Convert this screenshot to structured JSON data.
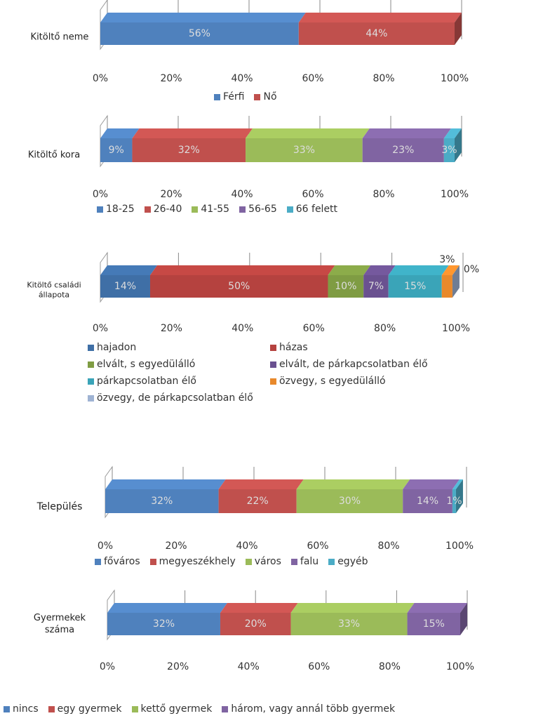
{
  "chart_data": [
    {
      "type": "bar",
      "categories": [
        "Kitöltő neme"
      ],
      "series": [
        {
          "name": "Férfi",
          "color": "#4f81bd",
          "values": [
            56
          ],
          "value_labels": [
            "56%"
          ]
        },
        {
          "name": "Nő",
          "color": "#c0504d",
          "values": [
            44
          ],
          "value_labels": [
            "44%"
          ]
        }
      ],
      "xlim": [
        0,
        100
      ],
      "xticks": [
        {
          "value": 0,
          "label": "0%"
        },
        {
          "value": 20,
          "label": "20%"
        },
        {
          "value": 40,
          "label": "40%"
        },
        {
          "value": 60,
          "label": "60%"
        },
        {
          "value": 80,
          "label": "80%"
        },
        {
          "value": 100,
          "label": "100%"
        }
      ],
      "grid": true
    },
    {
      "type": "bar",
      "categories": [
        "Kitöltő kora"
      ],
      "series": [
        {
          "name": "18-25",
          "color": "#4f81bd",
          "values": [
            9
          ],
          "value_labels": [
            "9%"
          ]
        },
        {
          "name": "26-40",
          "color": "#c0504d",
          "values": [
            32
          ],
          "value_labels": [
            "32%"
          ]
        },
        {
          "name": "41-55",
          "color": "#9bbb59",
          "values": [
            33
          ],
          "value_labels": [
            "33%"
          ]
        },
        {
          "name": "56-65",
          "color": "#8064a2",
          "values": [
            23
          ],
          "value_labels": [
            "23%"
          ]
        },
        {
          "name": "66 felett",
          "color": "#4bacc6",
          "values": [
            3
          ],
          "value_labels": [
            "3%"
          ]
        }
      ],
      "xlim": [
        0,
        100
      ],
      "xticks": [
        {
          "value": 0,
          "label": "0%"
        },
        {
          "value": 20,
          "label": "20%"
        },
        {
          "value": 40,
          "label": "40%"
        },
        {
          "value": 60,
          "label": "60%"
        },
        {
          "value": 80,
          "label": "80%"
        },
        {
          "value": 100,
          "label": "100%"
        }
      ],
      "grid": true
    },
    {
      "type": "bar",
      "categories": [
        "Kitöltő családi állapota"
      ],
      "series": [
        {
          "name": "hajadon",
          "color": "#3f6fa6",
          "values": [
            14
          ],
          "value_labels": [
            "14%"
          ]
        },
        {
          "name": "házas",
          "color": "#b5423f",
          "values": [
            50
          ],
          "value_labels": [
            "50%"
          ]
        },
        {
          "name": "elvált, s egyedülálló",
          "color": "#7f9c43",
          "values": [
            10
          ],
          "value_labels": [
            "10%"
          ]
        },
        {
          "name": "elvált, de párkapcsolatban élő",
          "color": "#6a5190",
          "values": [
            7
          ],
          "value_labels": [
            "7%"
          ]
        },
        {
          "name": "párkapcsolatban élő",
          "color": "#3aa4b8",
          "values": [
            15
          ],
          "value_labels": [
            "15%"
          ]
        },
        {
          "name": "özvegy, s egyedülálló",
          "color": "#e8892b",
          "values": [
            3
          ],
          "value_labels": [
            "3%"
          ]
        },
        {
          "name": "özvegy, de párkapcsolatban  élő",
          "color": "#9fb3d3",
          "values": [
            0
          ],
          "value_labels": [
            "0%"
          ]
        }
      ],
      "xlim": [
        0,
        100
      ],
      "xticks": [
        {
          "value": 0,
          "label": "0%"
        },
        {
          "value": 20,
          "label": "20%"
        },
        {
          "value": 40,
          "label": "40%"
        },
        {
          "value": 60,
          "label": "60%"
        },
        {
          "value": 80,
          "label": "80%"
        },
        {
          "value": 100,
          "label": "100%"
        }
      ],
      "grid": true
    },
    {
      "type": "bar",
      "categories": [
        "Település"
      ],
      "series": [
        {
          "name": "főváros",
          "color": "#4f81bd",
          "values": [
            32
          ],
          "value_labels": [
            "32%"
          ]
        },
        {
          "name": "megyeszékhely",
          "color": "#c0504d",
          "values": [
            22
          ],
          "value_labels": [
            "22%"
          ]
        },
        {
          "name": "város",
          "color": "#9bbb59",
          "values": [
            30
          ],
          "value_labels": [
            "30%"
          ]
        },
        {
          "name": "falu",
          "color": "#8064a2",
          "values": [
            14
          ],
          "value_labels": [
            "14%"
          ]
        },
        {
          "name": "egyéb",
          "color": "#4bacc6",
          "values": [
            1
          ],
          "value_labels": [
            "1%"
          ]
        }
      ],
      "xlim": [
        0,
        100
      ],
      "xticks": [
        {
          "value": 0,
          "label": "0%"
        },
        {
          "value": 20,
          "label": "20%"
        },
        {
          "value": 40,
          "label": "40%"
        },
        {
          "value": 60,
          "label": "60%"
        },
        {
          "value": 80,
          "label": "80%"
        },
        {
          "value": 100,
          "label": "100%"
        }
      ],
      "grid": true
    },
    {
      "type": "bar",
      "categories": [
        "Gyermekek száma"
      ],
      "series": [
        {
          "name": "nincs",
          "color": "#4f81bd",
          "values": [
            32
          ],
          "value_labels": [
            "32%"
          ]
        },
        {
          "name": "egy gyermek",
          "color": "#c0504d",
          "values": [
            20
          ],
          "value_labels": [
            "20%"
          ]
        },
        {
          "name": "kettő gyermek",
          "color": "#9bbb59",
          "values": [
            33
          ],
          "value_labels": [
            "33%"
          ]
        },
        {
          "name": "három, vagy annál több gyermek",
          "color": "#8064a2",
          "values": [
            15
          ],
          "value_labels": [
            "15%"
          ]
        }
      ],
      "xlim": [
        0,
        100
      ],
      "xticks": [
        {
          "value": 0,
          "label": "0%"
        },
        {
          "value": 20,
          "label": "20%"
        },
        {
          "value": 40,
          "label": "40%"
        },
        {
          "value": 60,
          "label": "60%"
        },
        {
          "value": 80,
          "label": "80%"
        },
        {
          "value": 100,
          "label": "100%"
        }
      ],
      "grid": true
    }
  ]
}
